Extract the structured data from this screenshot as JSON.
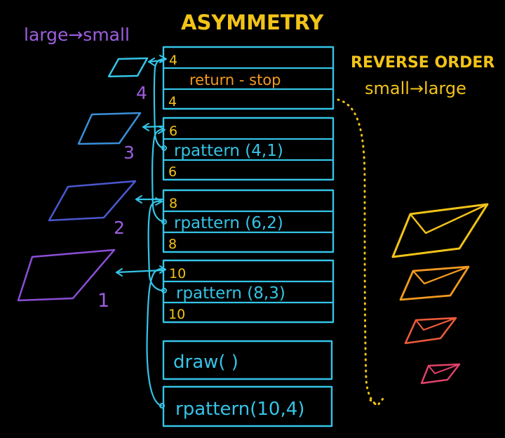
{
  "colors": {
    "title": "#f2c318",
    "stack": "#35c4e6",
    "size_text": "#f2c318",
    "return_text": "#f39a1f",
    "call_text": "#35c4e6",
    "left_heading": "#9d5ee0",
    "left_numbers": "#9d5ee0",
    "right_heading": "#f2c318",
    "dotted_arrow": "#f2c318"
  },
  "diagram": {
    "title": "ASYMMETRY",
    "left_heading": "large→small",
    "right_heading_line1": "REVERSE ORDER",
    "right_heading_line2": "small→large",
    "left_level_numbers": [
      "4",
      "3",
      "2",
      "1"
    ],
    "frames": [
      {
        "name": "frame-level-4",
        "top_value": "4",
        "middle": "return - stop",
        "bottom_value": "4"
      },
      {
        "name": "frame-level-3",
        "top_value": "6",
        "middle": "rpattern (4,1)",
        "bottom_value": "6"
      },
      {
        "name": "frame-level-2",
        "top_value": "8",
        "middle": "rpattern (6,2)",
        "bottom_value": "8"
      },
      {
        "name": "frame-level-1",
        "top_value": "10",
        "middle": "rpattern (8,3)",
        "bottom_value": "10"
      }
    ],
    "draw_call": "draw( )",
    "base_call": "rpattern(10,4)",
    "left_shapes": [
      {
        "name": "left-parallelogram-4",
        "color": "#35c4e6"
      },
      {
        "name": "left-parallelogram-3",
        "color": "#3a8fd9"
      },
      {
        "name": "left-parallelogram-2",
        "color": "#4a58cf"
      },
      {
        "name": "left-parallelogram-1",
        "color": "#8a4fd6"
      }
    ],
    "right_shapes": [
      {
        "name": "right-envelope-1",
        "color": "#f2c318"
      },
      {
        "name": "right-envelope-2",
        "color": "#f39a1f"
      },
      {
        "name": "right-envelope-3",
        "color": "#ec5a3a"
      },
      {
        "name": "right-envelope-4",
        "color": "#e3426c"
      }
    ]
  }
}
